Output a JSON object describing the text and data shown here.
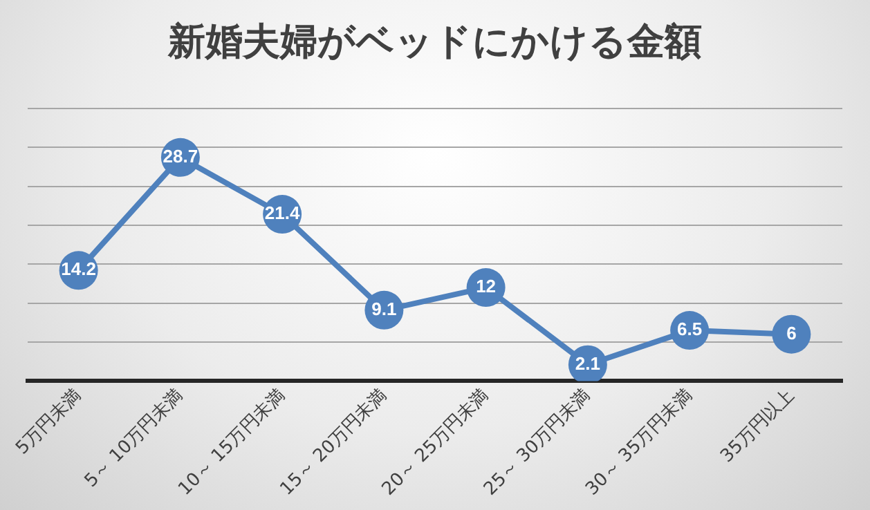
{
  "chart_data": {
    "type": "line",
    "title": "新婚夫婦がベッドにかける金額",
    "categories": [
      "5万円未満",
      "5～ 10万円未満",
      "10～ 15万円未満",
      "15～ 20万円未満",
      "20～ 25万円未満",
      "25～ 30万円未満",
      "30～ 35万円未満",
      "35万円以上"
    ],
    "series": [
      {
        "color": "#4f81bd",
        "values": [
          14.2,
          28.7,
          21.4,
          9.1,
          12,
          2.1,
          6.5,
          6
        ]
      }
    ],
    "ylim": [
      0,
      35
    ],
    "yticks": [
      0,
      5,
      10,
      15,
      20,
      25,
      30,
      35
    ],
    "grid": "y",
    "tick_labels": "x",
    "legend": false,
    "marker": "circle",
    "line_style": "solid",
    "data_labels": true
  }
}
